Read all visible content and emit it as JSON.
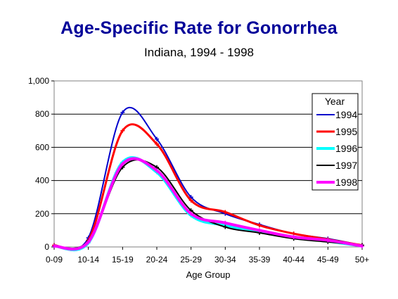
{
  "chart_data": {
    "type": "line",
    "title": "Age-Specific Rate for Gonorrhea",
    "subtitle": "Indiana, 1994 - 1998",
    "xlabel": "Age Group",
    "ylabel": "",
    "categories": [
      "0-09",
      "10-14",
      "15-19",
      "20-24",
      "25-29",
      "30-34",
      "35-39",
      "40-44",
      "45-49",
      "50+"
    ],
    "ylim": [
      0,
      1000
    ],
    "yticks": [
      "0",
      "200",
      "400",
      "600",
      "800",
      "1,000"
    ],
    "grid": "horizontal",
    "legend": {
      "title": "Year",
      "placement": "right"
    },
    "series": [
      {
        "name": "1994",
        "color": "#0000cc",
        "values": [
          10,
          55,
          810,
          650,
          300,
          200,
          135,
          80,
          50,
          10
        ]
      },
      {
        "name": "1995",
        "color": "#ff0000",
        "values": [
          10,
          40,
          700,
          620,
          280,
          210,
          130,
          80,
          45,
          10
        ]
      },
      {
        "name": "1996",
        "color": "#00ffff",
        "values": [
          5,
          25,
          510,
          450,
          190,
          130,
          90,
          60,
          35,
          5
        ]
      },
      {
        "name": "1997",
        "color": "#000000",
        "values": [
          5,
          35,
          480,
          480,
          220,
          120,
          85,
          50,
          30,
          10
        ]
      },
      {
        "name": "1998",
        "color": "#ff00ff",
        "values": [
          5,
          30,
          500,
          460,
          200,
          145,
          100,
          60,
          40,
          5
        ]
      }
    ]
  }
}
